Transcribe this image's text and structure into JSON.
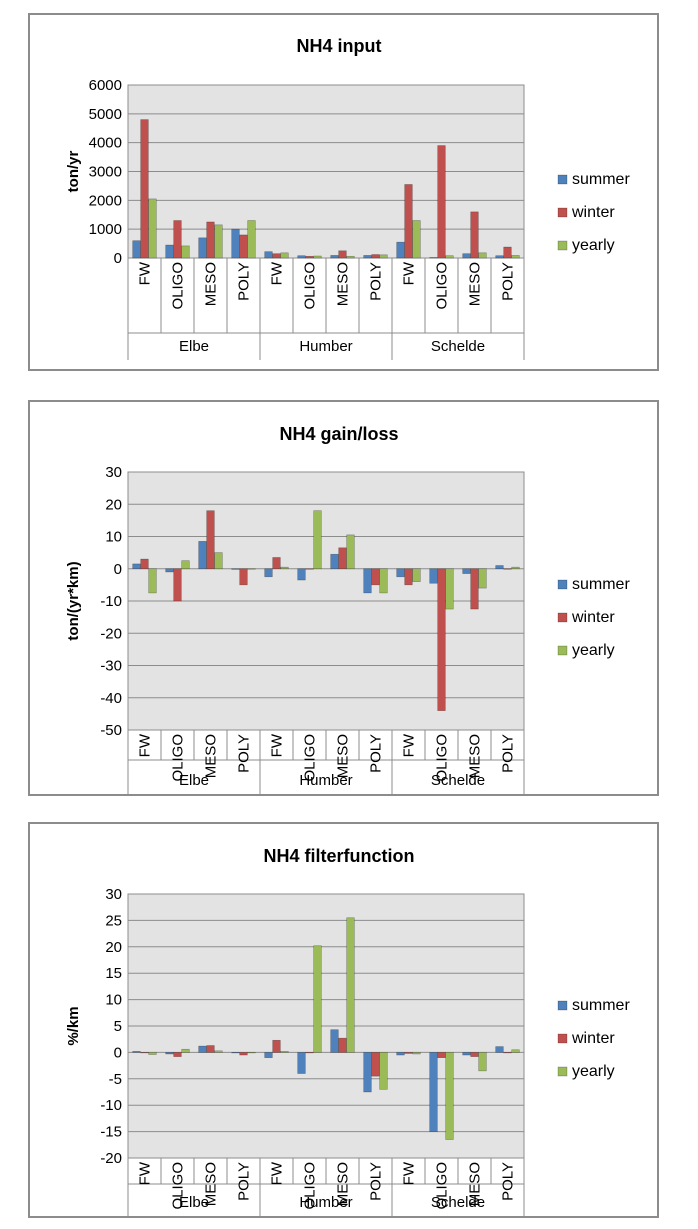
{
  "legend_labels": [
    "summer",
    "winter",
    "yearly"
  ],
  "colors": {
    "summer": "#4f81bd",
    "winter": "#c0504d",
    "yearly": "#9bbb59",
    "plot_bg": "#e3e3e3",
    "grid": "#8c8c8c"
  },
  "chart_data": [
    {
      "type": "bar",
      "title": "NH4 input",
      "ylabel": "ton/yr",
      "ylim": [
        0,
        6000
      ],
      "yticks": [
        0,
        1000,
        2000,
        3000,
        4000,
        5000,
        6000
      ],
      "ytick_labels": [
        "0",
        "1000",
        "2000",
        "3000",
        "4000",
        "5000",
        "6000"
      ],
      "categories": [
        "FW",
        "OLIGO",
        "MESO",
        "POLY",
        "FW",
        "OLIGO",
        "MESO",
        "POLY",
        "FW",
        "OLIGO",
        "MESO",
        "POLY"
      ],
      "groups": [
        "Elbe",
        "Humber",
        "Schelde"
      ],
      "legend": "right",
      "grid": true,
      "series": [
        {
          "name": "summer",
          "values": [
            600,
            450,
            700,
            1000,
            220,
            80,
            90,
            90,
            550,
            20,
            150,
            80
          ]
        },
        {
          "name": "winter",
          "values": [
            4800,
            1300,
            1250,
            800,
            150,
            60,
            250,
            120,
            2550,
            3900,
            1600,
            380
          ]
        },
        {
          "name": "yearly",
          "values": [
            2050,
            420,
            1150,
            1300,
            180,
            70,
            60,
            110,
            1300,
            80,
            180,
            90
          ]
        }
      ]
    },
    {
      "type": "bar",
      "title": "NH4 gain/loss",
      "ylabel": "ton/(yr*km)",
      "ylim": [
        -50,
        30
      ],
      "yticks": [
        -50,
        -40,
        -30,
        -20,
        -10,
        0,
        10,
        20,
        30
      ],
      "ytick_labels": [
        "-50",
        "-40",
        "-30",
        "-20",
        "-10",
        "0",
        "10",
        "20",
        "30"
      ],
      "categories": [
        "FW",
        "OLIGO",
        "MESO",
        "POLY",
        "FW",
        "OLIGO",
        "MESO",
        "POLY",
        "FW",
        "OLIGO",
        "MESO",
        "POLY"
      ],
      "groups": [
        "Elbe",
        "Humber",
        "Schelde"
      ],
      "legend": "right",
      "grid": true,
      "series": [
        {
          "name": "summer",
          "values": [
            1.5,
            -1,
            8.5,
            -0.2,
            -2.5,
            -3.5,
            4.5,
            -7.5,
            -2.5,
            -4.5,
            -1.5,
            1
          ]
        },
        {
          "name": "winter",
          "values": [
            3,
            -10,
            18,
            -5,
            3.5,
            0,
            6.5,
            -5,
            -5,
            -44,
            -12.5,
            0
          ]
        },
        {
          "name": "yearly",
          "values": [
            -7.5,
            2.5,
            5,
            0,
            0.5,
            18,
            10.5,
            -7.5,
            -4,
            -12.5,
            -6,
            0.5
          ]
        }
      ]
    },
    {
      "type": "bar",
      "title": "NH4 filterfunction",
      "ylabel": "%/km",
      "ylim": [
        -20,
        30
      ],
      "yticks": [
        -20,
        -15,
        -10,
        -5,
        0,
        5,
        10,
        15,
        20,
        25,
        30
      ],
      "ytick_labels": [
        "-20",
        "-15",
        "-10",
        "-5",
        "0",
        "5",
        "10",
        "15",
        "20",
        "25",
        "30"
      ],
      "categories": [
        "FW",
        "OLIGO",
        "MESO",
        "POLY",
        "FW",
        "OLIGO",
        "MESO",
        "POLY",
        "FW",
        "OLIGO",
        "MESO",
        "POLY"
      ],
      "groups": [
        "Elbe",
        "Humber",
        "Schelde"
      ],
      "legend": "right",
      "grid": true,
      "series": [
        {
          "name": "summer",
          "values": [
            0.2,
            -0.3,
            1.2,
            -0.1,
            -1,
            -4,
            4.3,
            -7.5,
            -0.5,
            -15,
            -0.5,
            1.1
          ]
        },
        {
          "name": "winter",
          "values": [
            0,
            -0.8,
            1.3,
            -0.5,
            2.3,
            0,
            2.7,
            -4.5,
            -0.2,
            -1,
            -0.8,
            0
          ]
        },
        {
          "name": "yearly",
          "values": [
            -0.4,
            0.6,
            0.3,
            0,
            0.2,
            20.2,
            25.5,
            -7,
            -0.3,
            -16.5,
            -3.5,
            0.5
          ]
        }
      ]
    }
  ]
}
